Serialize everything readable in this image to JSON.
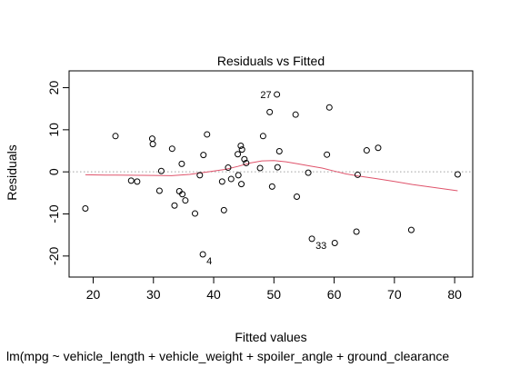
{
  "chart_data": {
    "type": "scatter",
    "title": "Residuals vs Fitted",
    "xlabel": "Fitted values",
    "ylabel": "Residuals",
    "subtitle": "lm(mpg ~ vehicle_length + vehicle_weight + spoiler_angle + ground_clearance",
    "xlim": [
      16,
      83
    ],
    "ylim": [
      -25,
      24
    ],
    "x_ticks": [
      20,
      30,
      40,
      50,
      60,
      70,
      80
    ],
    "y_ticks": [
      -20,
      -10,
      0,
      10,
      20
    ],
    "x_tick_labels": [
      "20",
      "30",
      "40",
      "50",
      "60",
      "70",
      "80"
    ],
    "y_tick_labels": [
      "-20",
      "-10",
      "0",
      "10",
      "20"
    ],
    "reference_line": 0,
    "reference_line_style": "dotted",
    "reference_line_color": "#a0a0a0",
    "smoother_color": "#df536b",
    "point_color": "#000000",
    "points": [
      {
        "x": 18.7,
        "y": -8.7
      },
      {
        "x": 23.7,
        "y": 8.5
      },
      {
        "x": 26.3,
        "y": -2.1
      },
      {
        "x": 27.3,
        "y": -2.3
      },
      {
        "x": 29.8,
        "y": 7.9
      },
      {
        "x": 29.9,
        "y": 6.6
      },
      {
        "x": 31.0,
        "y": -4.5
      },
      {
        "x": 31.3,
        "y": 0.2
      },
      {
        "x": 33.1,
        "y": 5.5
      },
      {
        "x": 33.5,
        "y": -8.0
      },
      {
        "x": 34.3,
        "y": -4.6
      },
      {
        "x": 34.7,
        "y": 1.9
      },
      {
        "x": 34.8,
        "y": -5.3
      },
      {
        "x": 35.3,
        "y": -6.8
      },
      {
        "x": 36.9,
        "y": -9.9
      },
      {
        "x": 37.7,
        "y": -0.8
      },
      {
        "x": 38.2,
        "y": -19.6
      },
      {
        "x": 38.3,
        "y": 4.0
      },
      {
        "x": 38.9,
        "y": 8.9
      },
      {
        "x": 41.4,
        "y": -2.3
      },
      {
        "x": 41.7,
        "y": -9.1
      },
      {
        "x": 42.4,
        "y": 1.0
      },
      {
        "x": 42.9,
        "y": -1.7
      },
      {
        "x": 44.0,
        "y": 4.2
      },
      {
        "x": 44.1,
        "y": -0.8
      },
      {
        "x": 44.5,
        "y": 6.2
      },
      {
        "x": 44.6,
        "y": -2.9
      },
      {
        "x": 44.7,
        "y": 5.3
      },
      {
        "x": 45.1,
        "y": 3.0
      },
      {
        "x": 45.4,
        "y": 2.1
      },
      {
        "x": 47.7,
        "y": 0.9
      },
      {
        "x": 48.2,
        "y": 8.5
      },
      {
        "x": 49.3,
        "y": 14.2
      },
      {
        "x": 49.7,
        "y": -3.5
      },
      {
        "x": 50.5,
        "y": 18.4
      },
      {
        "x": 50.6,
        "y": 1.1
      },
      {
        "x": 50.9,
        "y": 4.9
      },
      {
        "x": 53.6,
        "y": 13.6
      },
      {
        "x": 53.8,
        "y": -5.9
      },
      {
        "x": 55.7,
        "y": -0.2
      },
      {
        "x": 56.3,
        "y": -15.9
      },
      {
        "x": 58.8,
        "y": 4.1
      },
      {
        "x": 59.2,
        "y": 15.3
      },
      {
        "x": 60.1,
        "y": -16.9
      },
      {
        "x": 63.7,
        "y": -14.2
      },
      {
        "x": 63.9,
        "y": -0.7
      },
      {
        "x": 65.4,
        "y": 5.1
      },
      {
        "x": 67.3,
        "y": 5.7
      },
      {
        "x": 72.8,
        "y": -13.8
      },
      {
        "x": 80.5,
        "y": -0.6
      }
    ],
    "point_labels": [
      {
        "text": "27",
        "x": 50.5,
        "y": 18.4,
        "side": "left"
      },
      {
        "text": "33",
        "x": 56.3,
        "y": -15.9,
        "side": "below-right"
      },
      {
        "text": "4",
        "x": 38.2,
        "y": -19.6,
        "side": "below-right"
      }
    ],
    "smoother": [
      {
        "x": 18.7,
        "y": -0.7
      },
      {
        "x": 22,
        "y": -0.75
      },
      {
        "x": 26,
        "y": -0.8
      },
      {
        "x": 30,
        "y": -0.85
      },
      {
        "x": 33,
        "y": -0.9
      },
      {
        "x": 36,
        "y": -0.6
      },
      {
        "x": 39,
        "y": 0.0
      },
      {
        "x": 42,
        "y": 0.6
      },
      {
        "x": 44,
        "y": 1.3
      },
      {
        "x": 46,
        "y": 2.1
      },
      {
        "x": 48,
        "y": 2.6
      },
      {
        "x": 50,
        "y": 2.7
      },
      {
        "x": 52,
        "y": 2.4
      },
      {
        "x": 54,
        "y": 1.9
      },
      {
        "x": 56,
        "y": 1.4
      },
      {
        "x": 58,
        "y": 0.9
      },
      {
        "x": 60,
        "y": 0.2
      },
      {
        "x": 62,
        "y": -0.5
      },
      {
        "x": 64,
        "y": -1.0
      },
      {
        "x": 67,
        "y": -1.6
      },
      {
        "x": 70,
        "y": -2.3
      },
      {
        "x": 73,
        "y": -3.0
      },
      {
        "x": 76,
        "y": -3.6
      },
      {
        "x": 80.5,
        "y": -4.5
      }
    ]
  }
}
